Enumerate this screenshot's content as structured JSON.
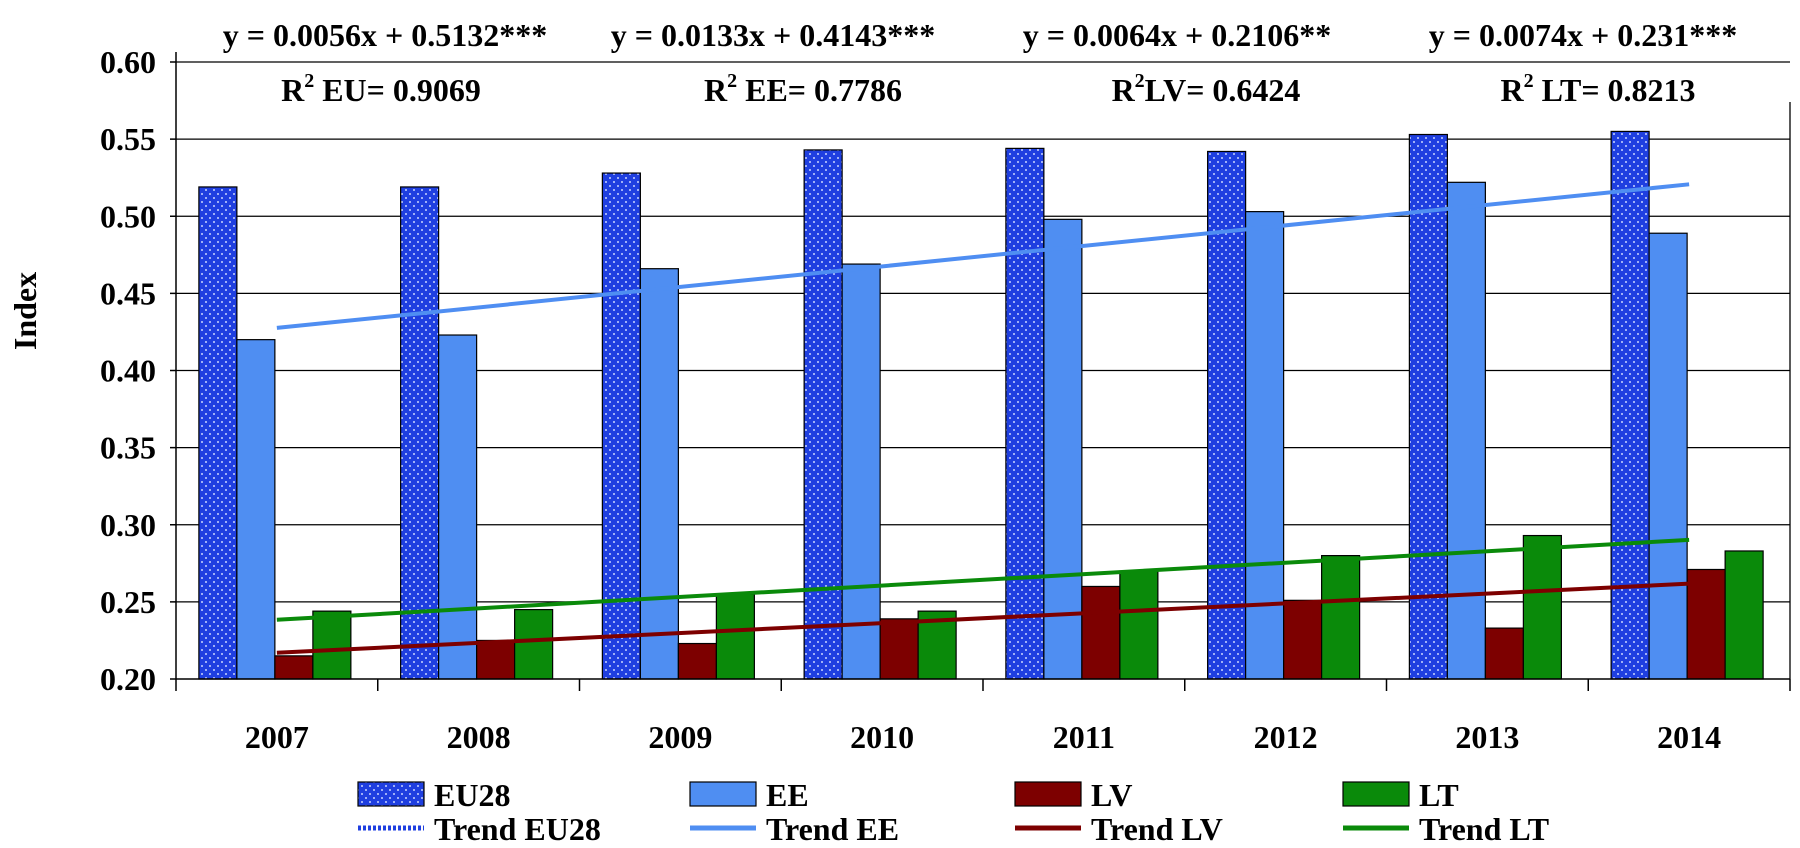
{
  "chart_data": {
    "type": "bar",
    "ylabel": "Index",
    "xlabel": "",
    "ylim": [
      0.2,
      0.6
    ],
    "y_ticks": [
      "0.20",
      "0.25",
      "0.30",
      "0.35",
      "0.40",
      "0.45",
      "0.50",
      "0.55",
      "0.60"
    ],
    "grid": true,
    "legend_position": "bottom",
    "categories": [
      "2007",
      "2008",
      "2009",
      "2010",
      "2011",
      "2012",
      "2013",
      "2014"
    ],
    "series": [
      {
        "name": "EU28",
        "color": "#1f3fe0",
        "pattern": "dotted",
        "values": [
          0.519,
          0.519,
          0.528,
          0.543,
          0.544,
          0.542,
          0.553,
          0.555
        ]
      },
      {
        "name": "EE",
        "color": "#4f8ef2",
        "values": [
          0.42,
          0.423,
          0.466,
          0.469,
          0.498,
          0.503,
          0.522,
          0.489
        ]
      },
      {
        "name": "LV",
        "color": "#7d0000",
        "values": [
          0.215,
          0.225,
          0.223,
          0.239,
          0.26,
          0.251,
          0.233,
          0.271
        ]
      },
      {
        "name": "LT",
        "color": "#0a8a0a",
        "values": [
          0.244,
          0.245,
          0.255,
          0.244,
          0.27,
          0.28,
          0.293,
          0.283
        ]
      }
    ],
    "trendlines": [
      {
        "name": "Trend EU28",
        "color": "#1f3fe0",
        "slope": 0.0056,
        "intercept": 0.5132,
        "visible": false
      },
      {
        "name": "Trend EE",
        "color": "#4f8ef2",
        "slope": 0.0133,
        "intercept": 0.4143,
        "visible": true
      },
      {
        "name": "Trend LV",
        "color": "#7d0000",
        "slope": 0.0064,
        "intercept": 0.2106,
        "visible": true
      },
      {
        "name": "Trend LT",
        "color": "#0a8a0a",
        "slope": 0.0074,
        "intercept": 0.231,
        "visible": true
      }
    ],
    "equations": [
      {
        "equation": "y = 0.0056x + 0.5132***",
        "r2_prefix": "R",
        "r2_sup": "2",
        "r2_rest": " EU= 0.9069"
      },
      {
        "equation": "y = 0.0133x + 0.4143***",
        "r2_prefix": "R",
        "r2_sup": "2",
        "r2_rest": " EE= 0.7786"
      },
      {
        "equation": "y = 0.0064x + 0.2106**",
        "r2_prefix": "R",
        "r2_sup": "2",
        "r2_rest": "LV= 0.6424"
      },
      {
        "equation": "y = 0.0074x + 0.231***",
        "r2_prefix": "R",
        "r2_sup": "2",
        "r2_rest": " LT= 0.8213"
      }
    ]
  }
}
